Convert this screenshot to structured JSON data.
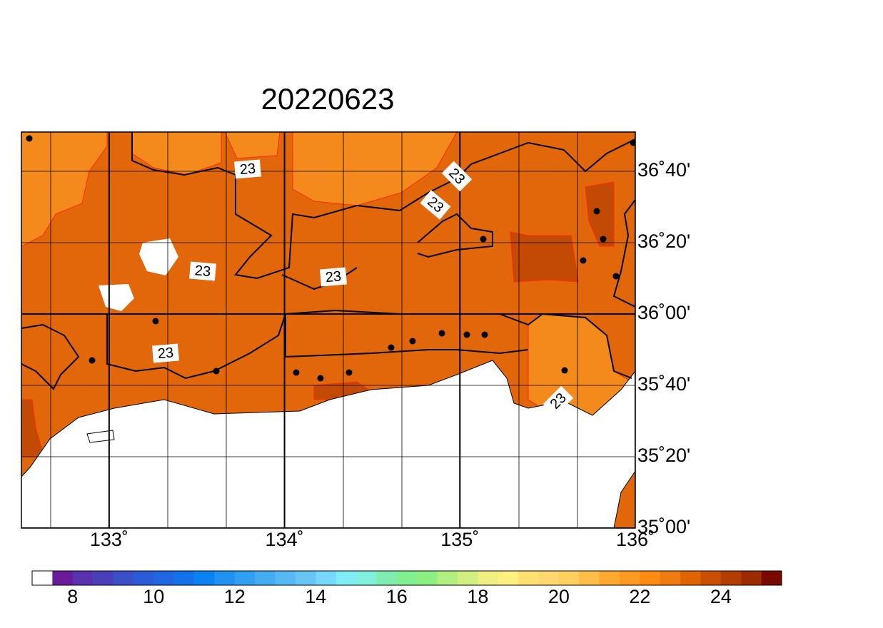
{
  "chart_data": {
    "type": "map",
    "title": "20220623",
    "xlim": [
      132.5,
      136
    ],
    "ylim": [
      35,
      36.85
    ],
    "xticks": [
      {
        "value": 133,
        "label": "133˚"
      },
      {
        "value": 134,
        "label": "134˚"
      },
      {
        "value": 135,
        "label": "135˚"
      },
      {
        "value": 136,
        "label": "136˚"
      }
    ],
    "yticks": [
      {
        "value": 35,
        "label": "35˚00'"
      },
      {
        "value": 35.3333,
        "label": "35˚20'"
      },
      {
        "value": 35.6667,
        "label": "35˚40'"
      },
      {
        "value": 36,
        "label": "36˚00'"
      },
      {
        "value": 36.3333,
        "label": "36˚20'"
      },
      {
        "value": 36.6667,
        "label": "36˚40'"
      }
    ],
    "contour_labels": [
      23,
      23,
      23,
      23,
      23,
      23,
      23
    ],
    "colorbar": {
      "lim": [
        7,
        25.5
      ],
      "ticks": [
        8,
        10,
        12,
        14,
        16,
        18,
        20,
        22,
        24
      ],
      "colors": [
        "#ffffff",
        "#6a1b9a",
        "#5a32b0",
        "#4a3fb8",
        "#3a50c8",
        "#2a5cd8",
        "#1f66e0",
        "#1272ea",
        "#0a82f2",
        "#2292f2",
        "#32a0f2",
        "#44acf2",
        "#56b8f4",
        "#66c6f6",
        "#76d8fa",
        "#80eef6",
        "#80f2dc",
        "#80ecb0",
        "#80f090",
        "#8cf080",
        "#b0f080",
        "#d0f080",
        "#f0f080",
        "#fff080",
        "#ffe070",
        "#ffd870",
        "#ffd060",
        "#ffbf48",
        "#ffa830",
        "#ff9a20",
        "#ff8c10",
        "#f07c10",
        "#e06400",
        "#c85000",
        "#b43e00",
        "#9c2c00",
        "#7a0a00"
      ]
    }
  }
}
